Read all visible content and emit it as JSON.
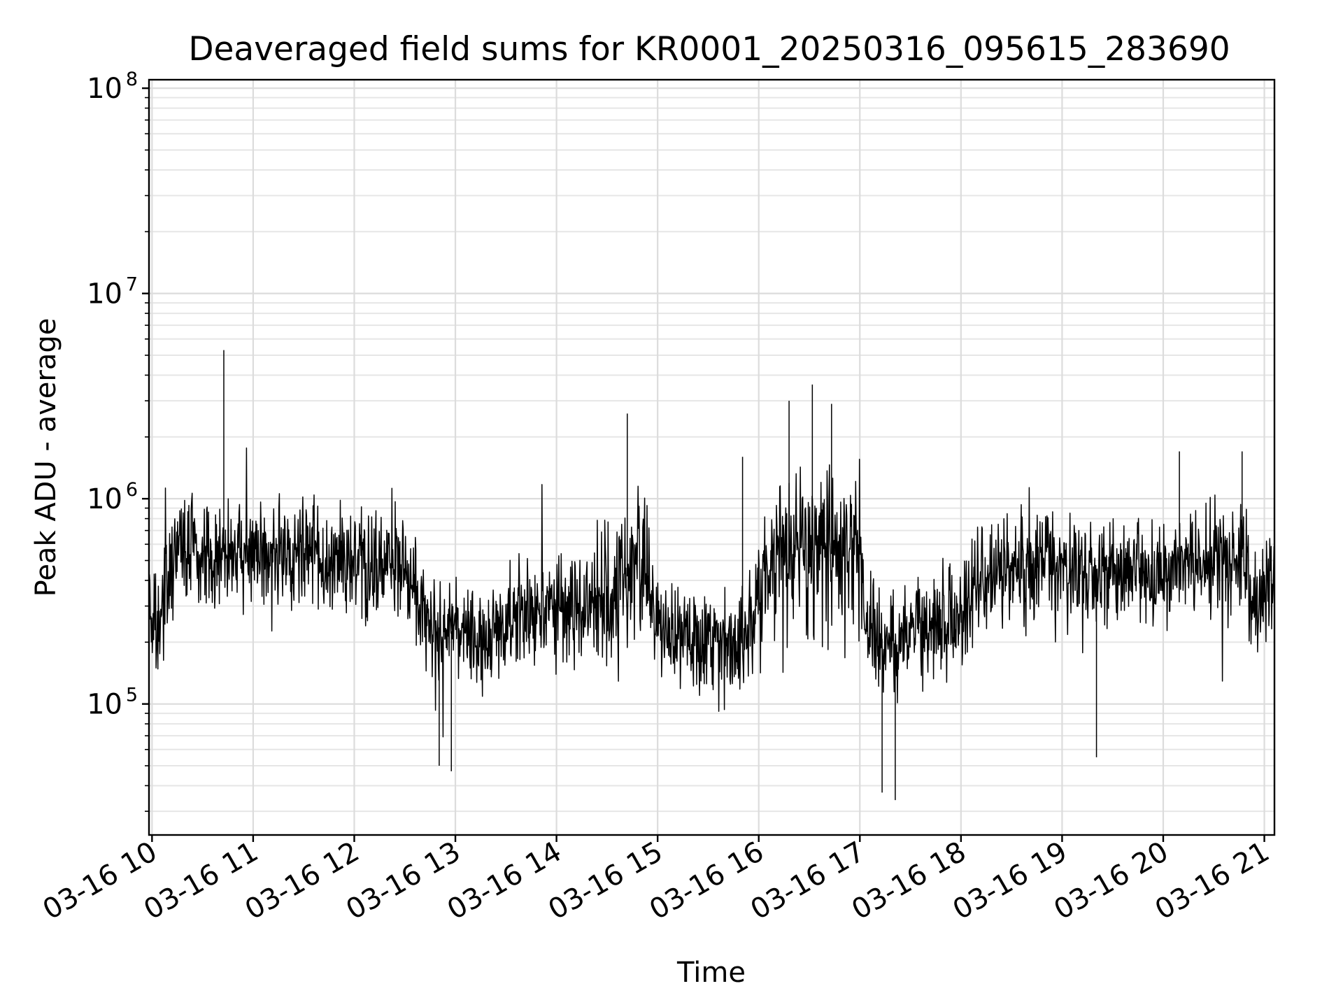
{
  "chart_data": {
    "type": "line",
    "title": "Deaveraged field sums for KR0001_20250316_095615_283690",
    "xlabel": "Time",
    "ylabel": "Peak ADU - average",
    "yscale": "log",
    "ylim": [
      23000,
      110000000
    ],
    "xlim_hours": [
      9.97,
      21.1
    ],
    "grid": true,
    "x_ticks": [
      {
        "label": "03-16 10",
        "hour": 10
      },
      {
        "label": "03-16 11",
        "hour": 11
      },
      {
        "label": "03-16 12",
        "hour": 12
      },
      {
        "label": "03-16 13",
        "hour": 13
      },
      {
        "label": "03-16 14",
        "hour": 14
      },
      {
        "label": "03-16 15",
        "hour": 15
      },
      {
        "label": "03-16 16",
        "hour": 16
      },
      {
        "label": "03-16 17",
        "hour": 17
      },
      {
        "label": "03-16 18",
        "hour": 18
      },
      {
        "label": "03-16 19",
        "hour": 19
      },
      {
        "label": "03-16 20",
        "hour": 20
      },
      {
        "label": "03-16 21",
        "hour": 21
      }
    ],
    "y_ticks": [
      {
        "base": "10",
        "exp": "5",
        "value": 100000
      },
      {
        "base": "10",
        "exp": "6",
        "value": 1000000
      },
      {
        "base": "10",
        "exp": "7",
        "value": 10000000
      },
      {
        "base": "10",
        "exp": "8",
        "value": 100000000
      }
    ],
    "series": [
      {
        "name": "field sums",
        "color": "#000000",
        "x_hours": [
          9.97,
          10.05,
          10.2,
          10.3,
          10.5,
          10.7,
          11.0,
          11.3,
          11.5,
          11.8,
          12.0,
          12.3,
          12.6,
          12.7,
          12.9,
          13.2,
          13.5,
          13.7,
          14.0,
          14.3,
          14.6,
          14.8,
          15.0,
          15.3,
          15.6,
          15.8,
          16.0,
          16.2,
          16.4,
          16.6,
          16.8,
          17.0,
          17.1,
          17.3,
          17.6,
          17.8,
          18.0,
          18.2,
          18.5,
          18.8,
          19.0,
          19.3,
          19.6,
          19.9,
          20.2,
          20.5,
          20.8,
          20.9,
          21.1
        ],
        "values": [
          300000,
          250000,
          450000,
          600000,
          500000,
          550000,
          500000,
          550000,
          600000,
          500000,
          480000,
          450000,
          400000,
          250000,
          230000,
          210000,
          220000,
          300000,
          310000,
          300000,
          350000,
          500000,
          230000,
          210000,
          190000,
          170000,
          300000,
          450000,
          500000,
          600000,
          500000,
          550000,
          220000,
          200000,
          230000,
          250000,
          260000,
          400000,
          450000,
          430000,
          450000,
          440000,
          450000,
          430000,
          480000,
          500000,
          520000,
          300000,
          400000
        ],
        "spikes": [
          {
            "hour": 10.71,
            "value": 5300000
          },
          {
            "hour": 14.7,
            "value": 2600000
          },
          {
            "hour": 16.53,
            "value": 3600000
          },
          {
            "hour": 16.3,
            "value": 3000000
          },
          {
            "hour": 16.72,
            "value": 2900000
          },
          {
            "hour": 15.84,
            "value": 1600000
          },
          {
            "hour": 20.16,
            "value": 1700000
          },
          {
            "hour": 20.78,
            "value": 1700000
          },
          {
            "hour": 17.35,
            "value": 34000
          },
          {
            "hour": 17.22,
            "value": 37000
          },
          {
            "hour": 12.96,
            "value": 47000
          },
          {
            "hour": 12.84,
            "value": 50000
          },
          {
            "hour": 19.34,
            "value": 55000
          }
        ]
      }
    ]
  }
}
